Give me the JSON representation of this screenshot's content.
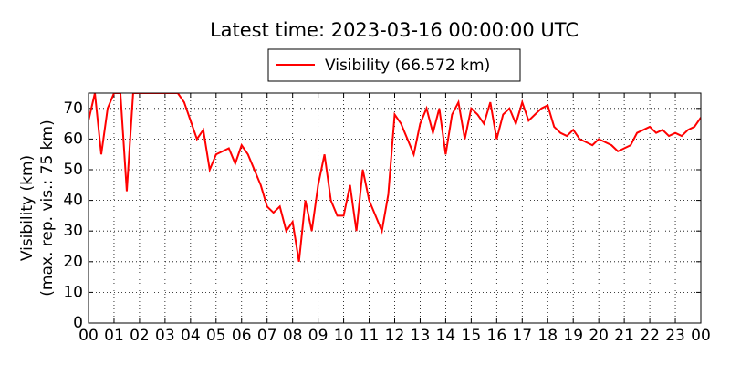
{
  "chart_data": {
    "type": "line",
    "title": "Latest time: 2023-03-16 00:00:00 UTC",
    "ylabel": [
      "Visibility (km)",
      "(max. rep. vis.: 75 km)"
    ],
    "x": [
      0,
      0.25,
      0.5,
      0.75,
      1,
      1.25,
      1.5,
      1.75,
      2,
      2.25,
      2.5,
      2.75,
      3,
      3.25,
      3.5,
      3.75,
      4,
      4.25,
      4.5,
      4.75,
      5,
      5.25,
      5.5,
      5.75,
      6,
      6.25,
      6.5,
      6.75,
      7,
      7.25,
      7.5,
      7.75,
      8,
      8.25,
      8.5,
      8.75,
      9,
      9.25,
      9.5,
      9.75,
      10,
      10.25,
      10.5,
      10.75,
      11,
      11.25,
      11.5,
      11.75,
      12,
      12.25,
      12.5,
      12.75,
      13,
      13.25,
      13.5,
      13.75,
      14,
      14.25,
      14.5,
      14.75,
      15,
      15.25,
      15.5,
      15.75,
      16,
      16.25,
      16.5,
      16.75,
      17,
      17.25,
      17.5,
      17.75,
      18,
      18.25,
      18.5,
      18.75,
      19,
      19.25,
      19.5,
      19.75,
      20,
      20.25,
      20.5,
      20.75,
      21,
      21.25,
      21.5,
      21.75,
      22,
      22.25,
      22.5,
      22.75,
      23,
      23.25,
      23.5,
      23.75,
      24
    ],
    "series": [
      {
        "name": "Visibility (66.572 km)",
        "color": "#ff0000",
        "values": [
          66,
          75,
          55,
          70,
          75,
          75,
          43,
          75,
          75,
          75,
          75,
          75,
          75,
          75,
          75,
          72,
          66,
          60,
          63,
          50,
          55,
          56,
          57,
          52,
          58,
          55,
          50,
          45,
          38,
          36,
          38,
          30,
          33,
          20,
          40,
          30,
          45,
          55,
          40,
          35,
          35,
          45,
          30,
          50,
          40,
          35,
          30,
          42,
          68,
          65,
          60,
          55,
          65,
          70,
          62,
          70,
          55,
          68,
          72,
          60,
          70,
          68,
          65,
          72,
          60,
          68,
          70,
          65,
          72,
          66,
          68,
          70,
          71,
          64,
          62,
          61,
          63,
          60,
          59,
          58,
          60,
          59,
          58,
          56,
          57,
          58,
          62,
          63,
          64,
          62,
          63,
          61,
          62,
          61,
          63,
          64,
          67
        ]
      }
    ],
    "xlim": [
      0,
      24
    ],
    "xticks": [
      {
        "value": 0,
        "label": "00"
      },
      {
        "value": 1,
        "label": "01"
      },
      {
        "value": 2,
        "label": "02"
      },
      {
        "value": 3,
        "label": "03"
      },
      {
        "value": 4,
        "label": "04"
      },
      {
        "value": 5,
        "label": "05"
      },
      {
        "value": 6,
        "label": "06"
      },
      {
        "value": 7,
        "label": "07"
      },
      {
        "value": 8,
        "label": "08"
      },
      {
        "value": 9,
        "label": "09"
      },
      {
        "value": 10,
        "label": "10"
      },
      {
        "value": 11,
        "label": "11"
      },
      {
        "value": 12,
        "label": "12"
      },
      {
        "value": 13,
        "label": "13"
      },
      {
        "value": 14,
        "label": "14"
      },
      {
        "value": 15,
        "label": "15"
      },
      {
        "value": 16,
        "label": "16"
      },
      {
        "value": 17,
        "label": "17"
      },
      {
        "value": 18,
        "label": "18"
      },
      {
        "value": 19,
        "label": "19"
      },
      {
        "value": 20,
        "label": "20"
      },
      {
        "value": 21,
        "label": "21"
      },
      {
        "value": 22,
        "label": "22"
      },
      {
        "value": 23,
        "label": "23"
      },
      {
        "value": 24,
        "label": "00"
      }
    ],
    "ylim": [
      0,
      75
    ],
    "yticks": [
      0,
      10,
      20,
      30,
      40,
      50,
      60,
      70
    ],
    "grid": true
  }
}
